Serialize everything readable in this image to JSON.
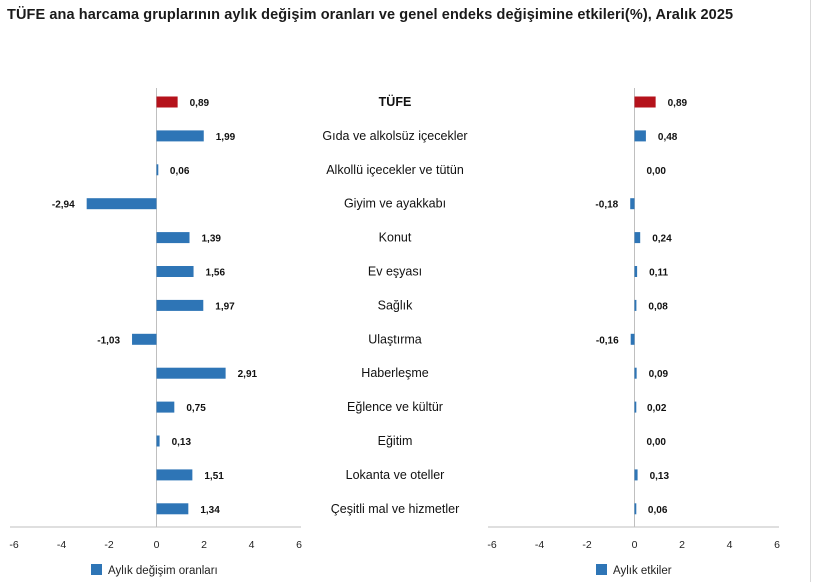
{
  "title": "TÜFE ana harcama gruplarının aylık değişim oranları ve genel endeks değişimine etkileri(%), Aralık 2025",
  "colors": {
    "highlight": "#B5121B",
    "bar": "#2E75B6",
    "axis": "#BFBFBF"
  },
  "chart_data": [
    {
      "type": "bar",
      "orientation": "horizontal",
      "series_name": "Aylık değişim oranları",
      "categories": [
        "TÜFE",
        "Gıda ve alkolsüz içecekler",
        "Alkollü içecekler ve tütün",
        "Giyim ve ayakkabı",
        "Konut",
        "Ev eşyası",
        "Sağlık",
        "Ulaştırma",
        "Haberleşme",
        "Eğlence ve kültür",
        "Eğitim",
        "Lokanta ve oteller",
        "Çeşitli mal ve hizmetler"
      ],
      "values": [
        0.89,
        1.99,
        0.06,
        -2.94,
        1.39,
        1.56,
        1.97,
        -1.03,
        2.91,
        0.75,
        0.13,
        1.51,
        1.34
      ],
      "labels": [
        "0,89",
        "1,99",
        "0,06",
        "-2,94",
        "1,39",
        "1,56",
        "1,97",
        "-1,03",
        "2,91",
        "0,75",
        "0,13",
        "1,51",
        "1,34"
      ],
      "xlim": [
        -6,
        6
      ],
      "ticks": [
        -6,
        -4,
        -2,
        0,
        2,
        4,
        6
      ],
      "tick_labels": [
        "-6",
        "-4",
        "-2",
        "0",
        "2",
        "4",
        "6"
      ],
      "legend": "Aylık değişim oranları"
    },
    {
      "type": "bar",
      "orientation": "horizontal",
      "series_name": "Aylık etkiler",
      "categories": [
        "TÜFE",
        "Gıda ve alkolsüz içecekler",
        "Alkollü içecekler ve tütün",
        "Giyim ve ayakkabı",
        "Konut",
        "Ev eşyası",
        "Sağlık",
        "Ulaştırma",
        "Haberleşme",
        "Eğlence ve kültür",
        "Eğitim",
        "Lokanta ve oteller",
        "Çeşitli mal ve hizmetler"
      ],
      "values": [
        0.89,
        0.48,
        0.0,
        -0.18,
        0.24,
        0.11,
        0.08,
        -0.16,
        0.09,
        0.02,
        0.0,
        0.13,
        0.06
      ],
      "labels": [
        "0,89",
        "0,48",
        "0,00",
        "-0,18",
        "0,24",
        "0,11",
        "0,08",
        "-0,16",
        "0,09",
        "0,02",
        "0,00",
        "0,13",
        "0,06"
      ],
      "xlim": [
        -6,
        6
      ],
      "ticks": [
        -6,
        -4,
        -2,
        0,
        2,
        4,
        6
      ],
      "tick_labels": [
        "-6",
        "-4",
        "-2",
        "0",
        "2",
        "4",
        "6"
      ],
      "legend": "Aylık etkiler"
    }
  ]
}
